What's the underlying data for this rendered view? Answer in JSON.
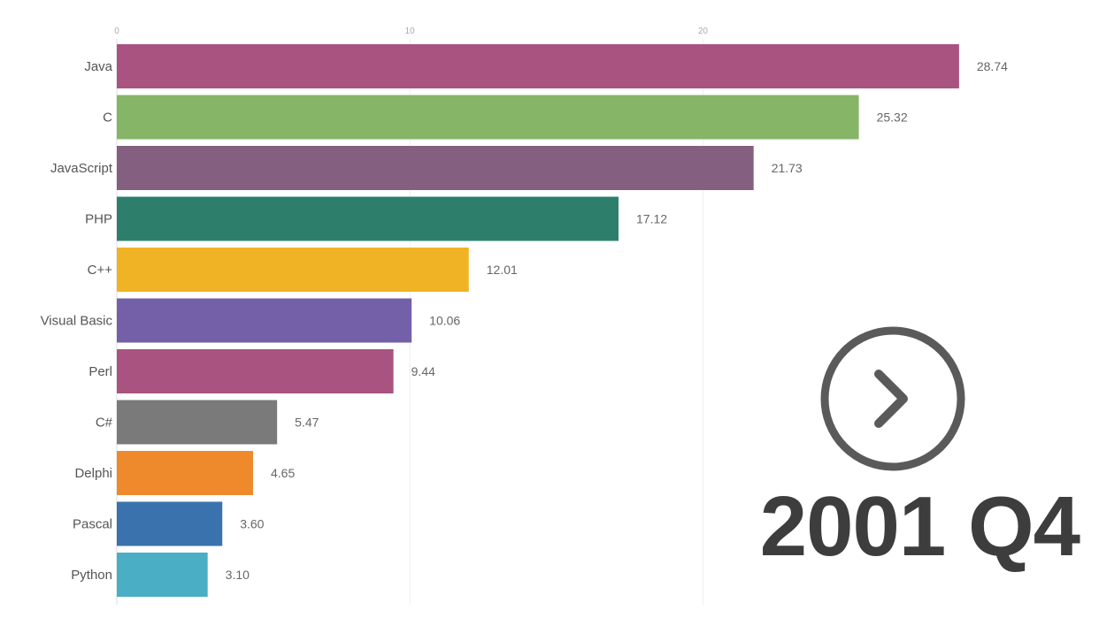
{
  "chart_data": {
    "type": "bar",
    "orientation": "horizontal",
    "title": "",
    "xlabel": "",
    "ylabel": "",
    "categories": [
      "Java",
      "C",
      "JavaScript",
      "PHP",
      "C++",
      "Visual Basic",
      "Perl",
      "C#",
      "Delphi",
      "Pascal",
      "Python"
    ],
    "values": [
      28.74,
      25.32,
      21.73,
      17.12,
      12.01,
      10.06,
      9.44,
      5.47,
      4.65,
      3.6,
      3.1
    ],
    "colors": [
      "#a85380",
      "#86b568",
      "#845f80",
      "#2d7f6c",
      "#f0b326",
      "#7460a8",
      "#a85380",
      "#7a7a7a",
      "#ee8a2c",
      "#3a72ad",
      "#4aaec4"
    ],
    "xticks": [
      "0",
      "10",
      "20"
    ],
    "xlim": [
      0,
      30
    ],
    "grid": true,
    "period": "2001 Q4"
  },
  "controls": {
    "play_icon": "play-circle-icon"
  }
}
